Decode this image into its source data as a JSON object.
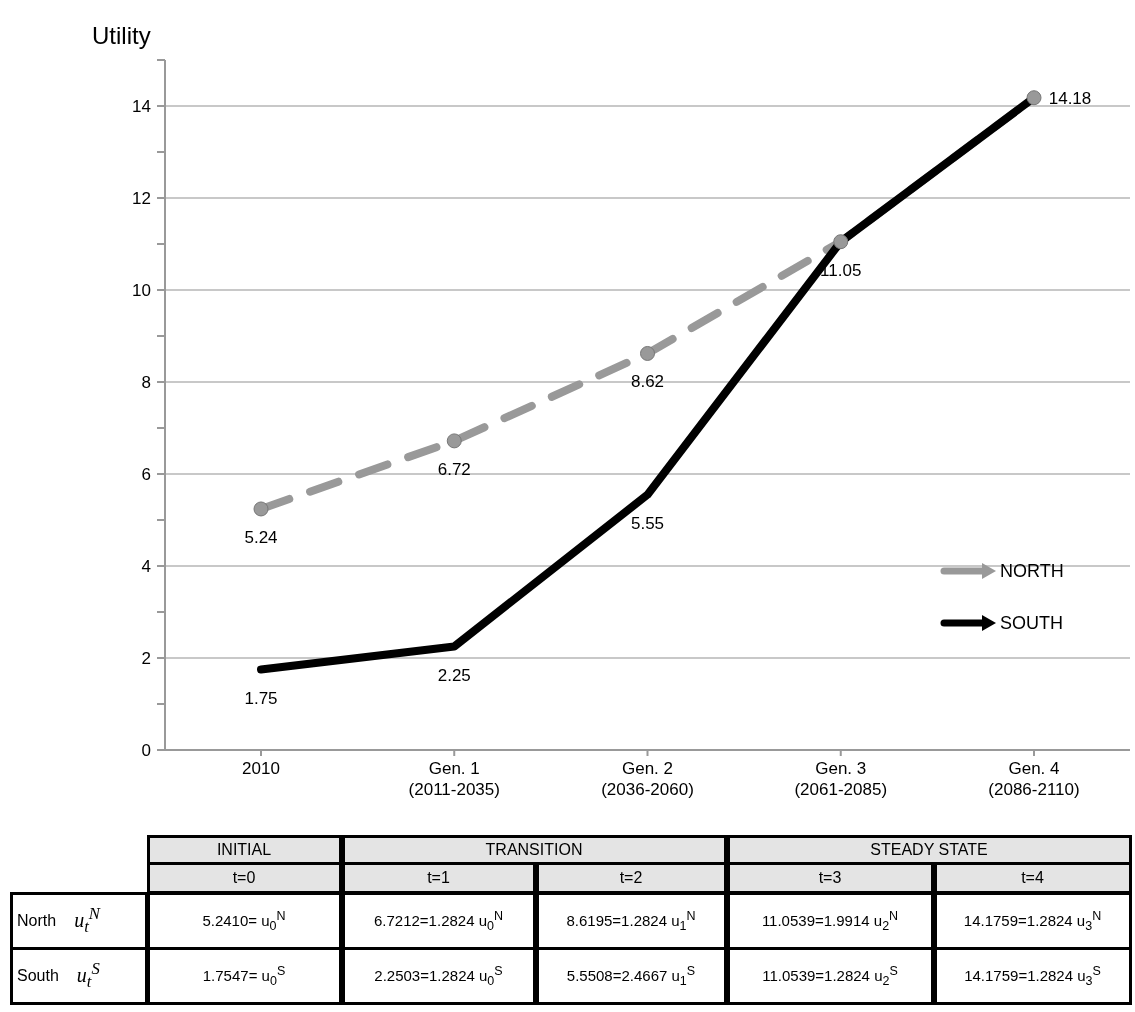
{
  "chart_data": {
    "type": "line",
    "ylabel": "Utility",
    "categories": [
      "2010",
      "Gen. 1\n(2011-2035)",
      "Gen. 2\n(2036-2060)",
      "Gen. 3\n(2061-2085)",
      "Gen. 4\n(2086-2110)"
    ],
    "series": [
      {
        "name": "NORTH",
        "color": "#999999",
        "line_style": "dashed",
        "marker": "circle",
        "values": [
          5.24,
          6.72,
          8.62,
          11.05,
          14.18
        ],
        "value_labels": [
          "5.24",
          "6.72",
          "8.62",
          "11.05",
          "14.18"
        ]
      },
      {
        "name": "SOUTH",
        "color": "#000000",
        "line_style": "solid",
        "marker": "none",
        "values": [
          1.75,
          2.25,
          5.55,
          11.05,
          14.18
        ],
        "value_labels": [
          "1.75",
          "2.25",
          "5.55",
          null,
          null
        ]
      }
    ],
    "ylim": [
      0,
      15
    ],
    "yticks": [
      0,
      {
        "value": 1,
        "label": null
      },
      2,
      {
        "value": 3,
        "label": null
      },
      4,
      {
        "value": 5,
        "label": null
      },
      6,
      {
        "value": 7,
        "label": null
      },
      8,
      {
        "value": 9,
        "label": null
      },
      10,
      {
        "value": 11,
        "label": null
      },
      12,
      {
        "value": 13,
        "label": null
      },
      14,
      {
        "value": 15,
        "label": null
      }
    ],
    "grid": "y",
    "legend": "bottom right",
    "annotations": [
      "INITIAL",
      "TRANSITION",
      "STEADY STATE",
      "t=0",
      "t=1",
      "t=2",
      "t=3",
      "t=4",
      "North",
      "u$_{t}$$^{N}$",
      "5.2410= u$_{0}$$^{N}$",
      "6.7212=1.2824 u$_{0}$$^{N}$",
      "8.6195=1.2824 u$_{1}$$^{N}$",
      "11.0539=1.9914 u$_{2}$$^{N}$",
      "14.1759=1.2824 u$_{3}$$^{N}$",
      "South",
      "u$_{t}$$^{S}$",
      "1.7547= u$_{0}$$^{S}$",
      "2.2503=1.2824 u$_{0}$$^{S}$",
      "5.5508=2.4667 u$_{1}$$^{S}$",
      "11.0539=1.2824 u$_{2}$$^{S}$",
      "14.1759=1.2824 u$_{3}$$^{S}$"
    ]
  }
}
